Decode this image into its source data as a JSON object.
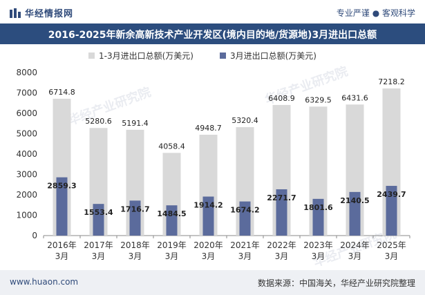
{
  "header": {
    "brand": "华经情报网",
    "tagline": "专业严谨 ● 客观科学"
  },
  "footer": {
    "url": "www.huaon.com",
    "source": "数据来源：中国海关，华经产业研究院整理"
  },
  "watermarks": [
    "华经产业研究院",
    "华经产业研究院",
    "华经产业研究院"
  ],
  "chart_data": {
    "type": "bar",
    "title": "2016-2025年新余高新技术产业开发区(境内目的地/货源地)3月进出口总额",
    "categories": [
      "2016年\n3月",
      "2017年\n3月",
      "2018年\n3月",
      "2019年\n3月",
      "2020年\n3月",
      "2021年\n3月",
      "2022年\n3月",
      "2023年\n3月",
      "2024年\n3月",
      "2025年\n3月"
    ],
    "series": [
      {
        "name": "1-3月进出口总额(万美元)",
        "color": "#d9d9d9",
        "values": [
          6714.8,
          5280.6,
          5191.4,
          4058.4,
          4948.7,
          5320.4,
          6408.9,
          6329.5,
          6431.6,
          7218.2
        ]
      },
      {
        "name": "3月进出口总额(万美元)",
        "color": "#5b6b9c",
        "values": [
          2859.3,
          1553.4,
          1716.7,
          1484.5,
          1914.2,
          1674.2,
          2271.7,
          1801.6,
          2140.5,
          2439.7
        ]
      }
    ],
    "value_labels_1": [
      "6714.8",
      "5280.6",
      "5191.4",
      "4058.4",
      "4948.7",
      "5320.4",
      "6408.9",
      "6329.5",
      "6431.6",
      "7218.2"
    ],
    "value_labels_2": [
      "2859.3",
      "1553.4",
      "1716.7",
      "1484.5",
      "1914.2",
      "1674.2",
      "2271.7",
      "1801.6",
      "2140.5",
      "2439.7"
    ],
    "yticks": [
      "0",
      "1000",
      "2000",
      "3000",
      "4000",
      "5000",
      "6000",
      "7000",
      "8000"
    ],
    "ylim": [
      0,
      8000
    ],
    "legend_position": "top"
  }
}
